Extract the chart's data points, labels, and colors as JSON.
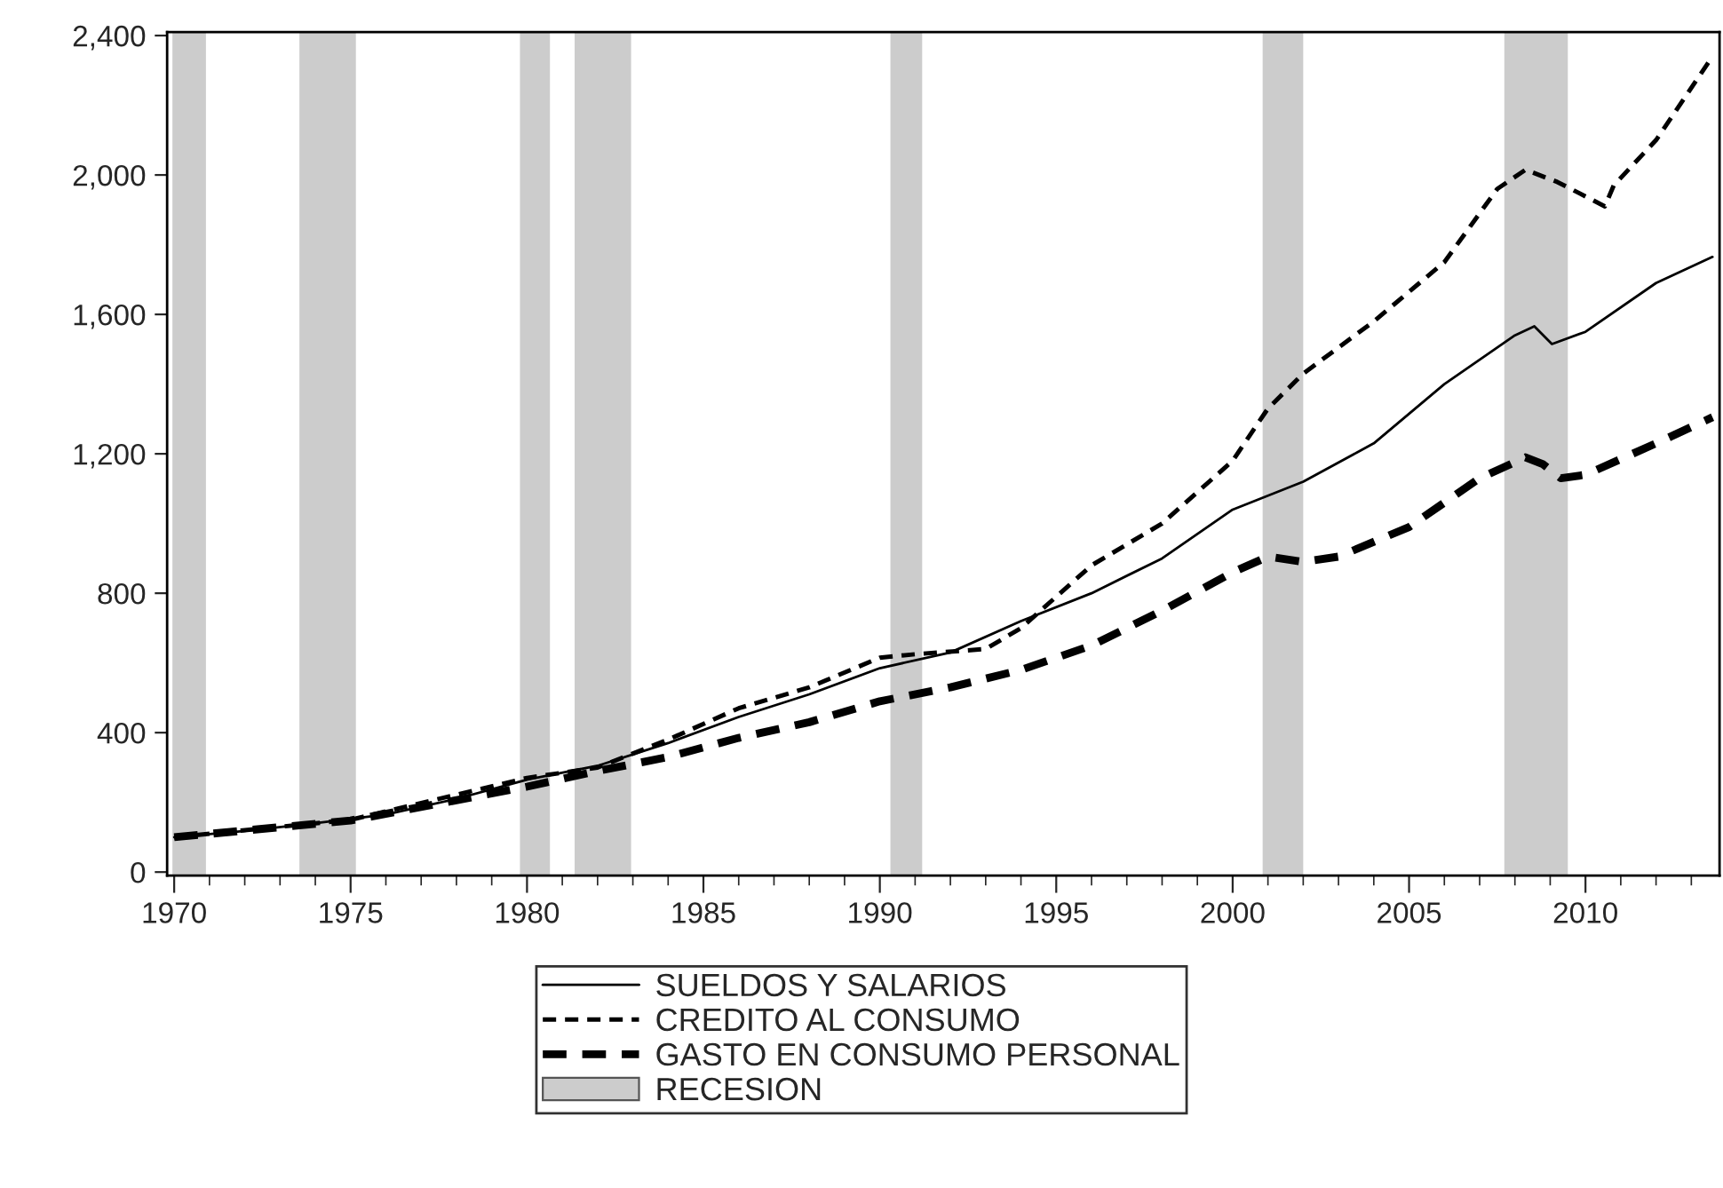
{
  "chart_data": {
    "type": "line",
    "xlim": [
      1969.8,
      2013.8
    ],
    "xticks": [
      1970,
      1975,
      1980,
      1985,
      1990,
      1995,
      2000,
      2005,
      2010
    ],
    "ylim": [
      -10,
      2410
    ],
    "yticks": [
      0,
      400,
      800,
      {
        "value": 1200,
        "label": "1,200"
      },
      {
        "value": 1600,
        "label": "1,600"
      },
      {
        "value": 2000,
        "label": "2,000"
      },
      {
        "value": 2400,
        "label": "2,400"
      }
    ],
    "grid": false,
    "legend": "bottom",
    "series": [
      {
        "name": "SUELDOS Y SALARIOS",
        "color": "#000000",
        "line_style": "solid",
        "x": [
          1970,
          1972,
          1974,
          1976,
          1978,
          1980,
          1982,
          1984,
          1986,
          1988,
          1990,
          1992,
          1994,
          1996,
          1998,
          2000,
          2002,
          2004,
          2006,
          2008,
          2008.55,
          2009.05,
          2010,
          2012,
          2013.6
        ],
        "values": [
          100,
          118,
          140,
          165,
          210,
          265,
          305,
          370,
          445,
          510,
          585,
          630,
          720,
          800,
          900,
          1040,
          1120,
          1230,
          1400,
          1540,
          1566,
          1515,
          1550,
          1690,
          1765
        ]
      },
      {
        "name": "CREDITO AL CONSUMO",
        "color": "#000000",
        "line_style": "dashed",
        "x": [
          1970,
          1975,
          1980,
          1982,
          1984,
          1986,
          1988,
          1990,
          1991,
          1993,
          1994,
          1996,
          1998,
          2000,
          2001,
          2002,
          2004,
          2006,
          2007.5,
          2008.3,
          2009.2,
          2010.55,
          2010.8,
          2012,
          2013.6
        ],
        "values": [
          100,
          150,
          270,
          300,
          380,
          470,
          530,
          615,
          625,
          640,
          700,
          880,
          1000,
          1180,
          1330,
          1430,
          1580,
          1750,
          1960,
          2015,
          1980,
          1910,
          1970,
          2100,
          2340
        ]
      },
      {
        "name": "GASTO EN CONSUMO PERSONAL",
        "color": "#000000",
        "line_style": "dashed",
        "x": [
          1970,
          1975,
          1980,
          1982,
          1984,
          1986,
          1988,
          1990,
          1992,
          1994,
          1996,
          1998,
          2000,
          2001,
          2002,
          2003,
          2005,
          2007,
          2008.3,
          2008.8,
          2009.3,
          2010,
          2012,
          2013.6
        ],
        "values": [
          100,
          148,
          245,
          290,
          330,
          385,
          430,
          490,
          530,
          580,
          650,
          750,
          860,
          905,
          890,
          905,
          990,
          1130,
          1190,
          1170,
          1130,
          1140,
          1230,
          1305
        ]
      }
    ],
    "bands": [
      {
        "axis": "x",
        "from": 1969.95,
        "to": 1970.9,
        "label": "RECESION",
        "color": "#cccccc"
      },
      {
        "axis": "x",
        "from": 1973.55,
        "to": 1975.15,
        "color": "#cccccc"
      },
      {
        "axis": "x",
        "from": 1979.8,
        "to": 1980.65,
        "color": "#cccccc"
      },
      {
        "axis": "x",
        "from": 1981.35,
        "to": 1982.95,
        "color": "#cccccc"
      },
      {
        "axis": "x",
        "from": 1990.3,
        "to": 1991.2,
        "color": "#cccccc"
      },
      {
        "axis": "x",
        "from": 2000.85,
        "to": 2002.0,
        "color": "#cccccc"
      },
      {
        "axis": "x",
        "from": 2007.7,
        "to": 2009.5,
        "color": "#cccccc"
      }
    ]
  }
}
